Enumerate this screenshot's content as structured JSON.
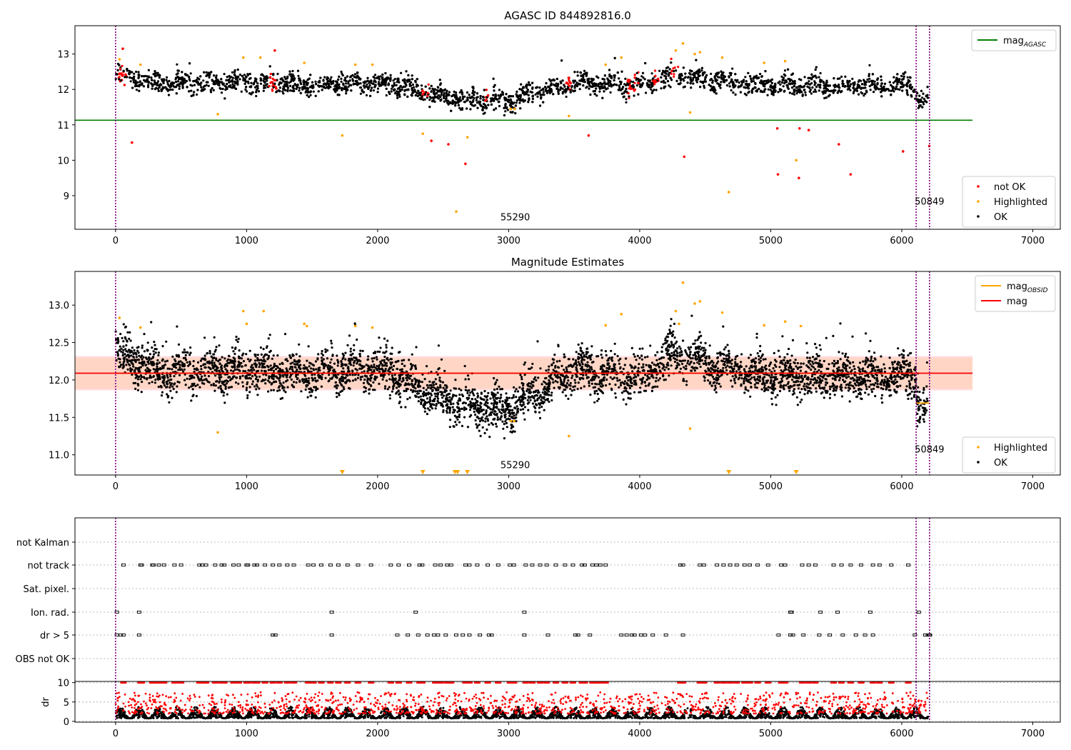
{
  "colors": {
    "ok": "#000000",
    "not_ok": "#ff0000",
    "highlighted": "#ffa500",
    "mag_agasc": "#008000",
    "mag_line": "#ff0000",
    "mag_obsid": "#ffa500",
    "vline": "#800080",
    "band_outer": "#ffc0cb",
    "band_inner": "#ffd0b0"
  },
  "chart_data": [
    {
      "type": "scatter",
      "title": "AGASC ID 844892816.0",
      "xlabel": "",
      "ylabel": "",
      "xlim": [
        -310,
        7210
      ],
      "ylim": [
        8.05,
        13.8
      ],
      "xticks": [
        0,
        1000,
        2000,
        3000,
        4000,
        5000,
        6000,
        7000
      ],
      "yticks": [
        9,
        10,
        11,
        12,
        13
      ],
      "grid": false,
      "hline": {
        "name": "mag_AGASC",
        "y": 11.13,
        "x_range": [
          -310,
          6540
        ]
      },
      "vlines": [
        0,
        6110,
        6212
      ],
      "annotations": [
        {
          "text": "55290",
          "x": 3050,
          "y": 8.3
        },
        {
          "text": "50849",
          "x": 6212,
          "y": 8.75
        }
      ],
      "legends": [
        {
          "position": "top-right",
          "entries": [
            {
              "label": "mag",
              "sub": "AGASC",
              "kind": "line",
              "color": "#008000"
            }
          ]
        },
        {
          "position": "bottom-right",
          "entries": [
            {
              "label": "not OK",
              "kind": "dot",
              "color": "#ff0000"
            },
            {
              "label": "Highlighted",
              "kind": "dot",
              "color": "#ffa500"
            },
            {
              "label": "OK",
              "kind": "dot",
              "color": "#000000"
            }
          ]
        }
      ],
      "trend": {
        "x": [
          0,
          300,
          1000,
          1500,
          2000,
          2300,
          2500,
          2700,
          3000,
          3150,
          3500,
          4000,
          4250,
          4450,
          5000,
          5500,
          6000,
          6100,
          6120,
          6200
        ],
        "y": [
          12.45,
          12.15,
          12.2,
          12.15,
          12.2,
          12.0,
          11.8,
          11.7,
          11.65,
          11.85,
          12.2,
          12.1,
          12.4,
          12.3,
          12.1,
          12.1,
          12.1,
          12.15,
          11.7,
          11.7
        ]
      },
      "outliers_highlighted": {
        "x": [
          30,
          190,
          780,
          975,
          1105,
          1440,
          1730,
          1830,
          1960,
          2345,
          2600,
          2685,
          3015,
          3045,
          3460,
          3740,
          3860,
          4275,
          4330,
          4385,
          4420,
          4460,
          4630,
          4680,
          4950,
          5110,
          5195
        ],
        "y": [
          12.85,
          12.7,
          11.3,
          12.9,
          12.9,
          12.75,
          10.7,
          12.7,
          12.7,
          10.75,
          8.55,
          10.65,
          11.45,
          11.45,
          11.25,
          12.7,
          12.9,
          13.1,
          13.3,
          11.35,
          13.0,
          13.05,
          12.9,
          9.1,
          12.75,
          12.8,
          10.0
        ]
      },
      "outliers_not_ok": {
        "x": [
          55,
          125,
          1215,
          2410,
          2540,
          2670,
          3610,
          4340,
          5050,
          5055,
          5215,
          5220,
          5290,
          5520,
          5610,
          6010,
          6210
        ],
        "y": [
          13.15,
          10.5,
          13.1,
          10.55,
          10.45,
          9.9,
          10.7,
          10.1,
          10.9,
          9.6,
          9.5,
          10.9,
          10.85,
          10.45,
          9.6,
          10.25,
          10.4
        ]
      },
      "notok_clusters": [
        [
          20,
          80
        ],
        [
          1170,
          1230
        ],
        [
          2340,
          2390
        ],
        [
          2820,
          2860
        ],
        [
          3440,
          3480
        ],
        [
          3900,
          3990
        ],
        [
          4100,
          4150
        ],
        [
          4240,
          4300
        ]
      ]
    },
    {
      "type": "scatter",
      "title": "Magnitude Estimates",
      "xlabel": "",
      "ylabel": "",
      "xlim": [
        -310,
        7210
      ],
      "ylim": [
        10.73,
        13.45
      ],
      "xticks": [
        0,
        1000,
        2000,
        3000,
        4000,
        5000,
        6000,
        7000
      ],
      "yticks": [
        11.0,
        11.5,
        12.0,
        12.5,
        13.0
      ],
      "grid": false,
      "mag": 12.09,
      "band_outer": [
        11.86,
        12.32
      ],
      "band_inner": [
        11.88,
        12.3
      ],
      "mag_obsid_segments": [
        {
          "x": [
            0,
            6110
          ],
          "y": 12.09
        },
        {
          "x": [
            6110,
            6212
          ],
          "y": 11.69
        }
      ],
      "vlines": [
        0,
        6110,
        6212
      ],
      "annotations": [
        {
          "text": "55290",
          "x": 3050,
          "y": 10.82
        },
        {
          "text": "50849",
          "x": 6212,
          "y": 11.03
        }
      ],
      "legends": [
        {
          "position": "top-right",
          "entries": [
            {
              "label": "mag",
              "sub": "OBSID",
              "kind": "line",
              "color": "#ffa500"
            },
            {
              "label": "mag",
              "kind": "line",
              "color": "#ff0000"
            }
          ]
        },
        {
          "position": "bottom-right",
          "entries": [
            {
              "label": "Highlighted",
              "kind": "dot",
              "color": "#ffa500"
            },
            {
              "label": "OK",
              "kind": "dot",
              "color": "#000000"
            }
          ]
        }
      ],
      "outliers_highlighted": {
        "x": [
          30,
          190,
          780,
          975,
          1000,
          1130,
          1440,
          1460,
          1830,
          1960,
          3015,
          3040,
          3460,
          3740,
          3860,
          4275,
          4300,
          4330,
          4385,
          4420,
          4460,
          4630,
          4950,
          5110,
          5230
        ],
        "y": [
          12.83,
          12.7,
          11.3,
          12.92,
          12.75,
          12.92,
          12.75,
          12.72,
          12.72,
          12.7,
          11.45,
          11.45,
          11.25,
          12.73,
          12.88,
          12.92,
          12.75,
          13.3,
          11.35,
          13.02,
          13.05,
          12.9,
          12.73,
          12.78,
          12.72
        ]
      },
      "lower_markers_x": [
        1730,
        2345,
        2590,
        2610,
        2685,
        4680,
        5195
      ]
    },
    {
      "type": "scatter",
      "title": "",
      "xlabel": "",
      "ylabel": "",
      "xlim": [
        -310,
        7210
      ],
      "categories": [
        "not Kalman",
        "not track",
        "Sat. pixel.",
        "Ion. rad.",
        "dr > 5",
        "OBS not OK"
      ],
      "vlines": [
        0,
        6110,
        6212
      ],
      "flag_x": {
        "not Kalman": [],
        "not track": [
          60,
          190,
          200,
          280,
          290,
          330,
          370,
          450,
          500,
          640,
          660,
          690,
          760,
          810,
          830,
          900,
          940,
          1000,
          1010,
          1060,
          1080,
          1140,
          1200,
          1250,
          1310,
          1360,
          1470,
          1510,
          1570,
          1640,
          1700,
          1770,
          1850,
          1950,
          2100,
          2160,
          2240,
          2320,
          2340,
          2440,
          2480,
          2530,
          2560,
          2670,
          2700,
          2760,
          2840,
          2920,
          3010,
          3040,
          3130,
          3180,
          3240,
          3290,
          3360,
          3430,
          3490,
          3560,
          3580,
          3640,
          3670,
          3700,
          3740,
          4310,
          4330,
          4460,
          4490,
          4590,
          4640,
          4690,
          4740,
          4800,
          4840,
          4900,
          4980,
          5080,
          5110,
          5240,
          5290,
          5340,
          5480,
          5540,
          5610,
          5690,
          5780,
          5830,
          5920,
          6050
        ],
        "Sat. pixel.": [],
        "Ion. rad.": [
          10,
          180,
          1650,
          2290,
          3120,
          5150,
          5160,
          5380,
          5510,
          5760,
          6130
        ],
        "dr > 5": [
          10,
          40,
          60,
          180,
          1200,
          1220,
          1650,
          2150,
          2230,
          2310,
          2380,
          2430,
          2460,
          2520,
          2600,
          2650,
          2700,
          2780,
          2850,
          2870,
          3120,
          3300,
          3510,
          3530,
          3620,
          3860,
          3900,
          3940,
          3960,
          4010,
          4040,
          4100,
          4200,
          4330,
          5060,
          5150,
          5170,
          5250,
          5370,
          5450,
          5550,
          5650,
          5720,
          5780,
          6100,
          6180,
          6200,
          6210,
          6215
        ],
        "OBS not OK": []
      }
    },
    {
      "type": "scatter",
      "title": "",
      "xlabel": "",
      "ylabel": "dr",
      "xlim": [
        -310,
        7210
      ],
      "ylim": [
        -0.2,
        10.3
      ],
      "xticks": [
        0,
        1000,
        2000,
        3000,
        4000,
        5000,
        6000,
        7000
      ],
      "yticks": [
        0,
        5,
        10
      ],
      "grid": true,
      "threshold": 5,
      "vlines": [
        0,
        6110,
        6212
      ],
      "points_ok_range": [
        0.2,
        3.2
      ],
      "points_not_ok_range": [
        2.0,
        7.5
      ],
      "cap_value": 10
    }
  ]
}
